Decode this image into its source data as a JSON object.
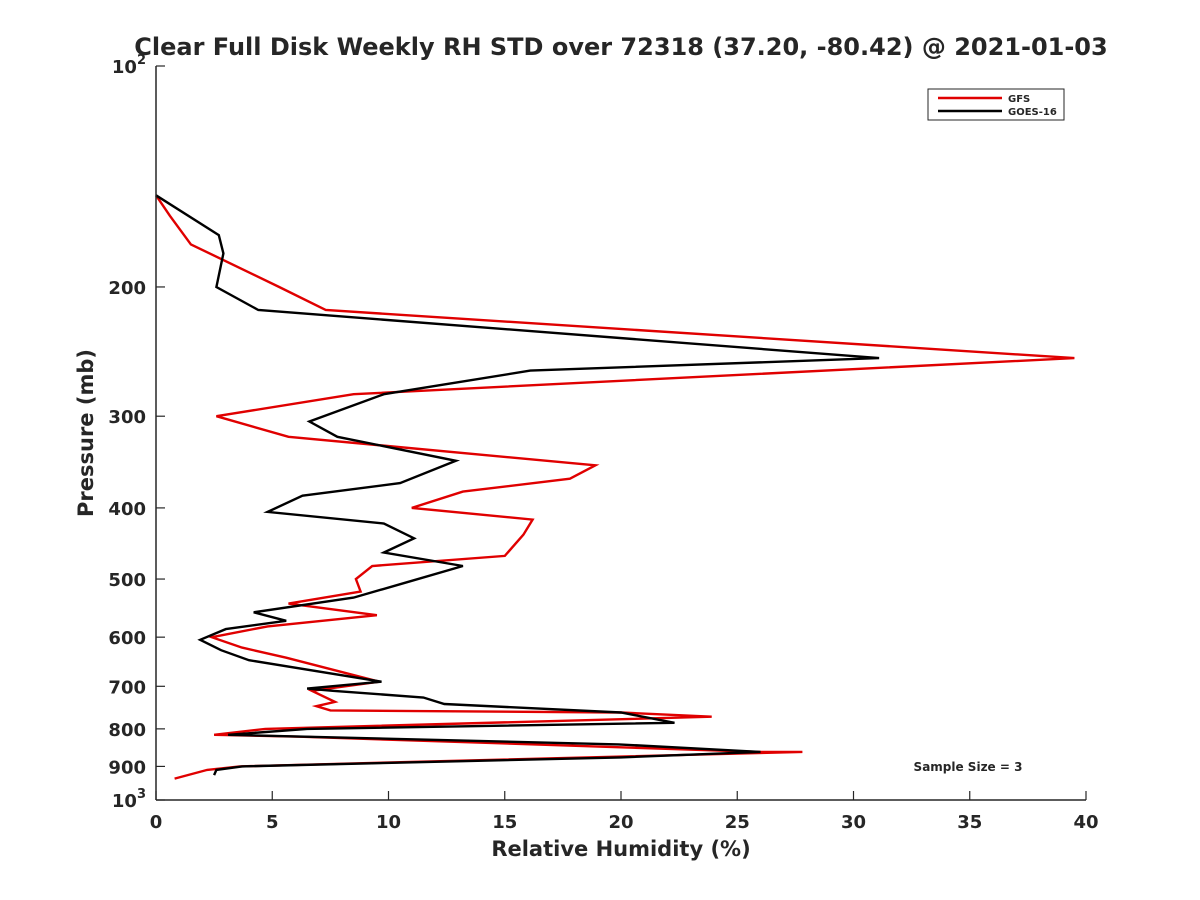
{
  "chart_data": {
    "type": "line",
    "title": "Clear Full Disk Weekly RH STD over 72318 (37.20, -80.42) @ 2021-01-03",
    "xlabel": "Relative Humidity (%)",
    "ylabel": "Pressure (mb)",
    "xlim": [
      0,
      40
    ],
    "ylim": [
      100,
      1000
    ],
    "y_scale": "log",
    "y_reversed": true,
    "grid": false,
    "legend_position": "top-right",
    "x_ticks": [
      "0",
      "5",
      "10",
      "15",
      "20",
      "25",
      "30",
      "35",
      "40"
    ],
    "y_ticks": [
      {
        "value": 100,
        "base": "10",
        "exp": "2"
      },
      {
        "value": 200,
        "label": "200"
      },
      {
        "value": 300,
        "label": "300"
      },
      {
        "value": 400,
        "label": "400"
      },
      {
        "value": 500,
        "label": "500"
      },
      {
        "value": 600,
        "label": "600"
      },
      {
        "value": 700,
        "label": "700"
      },
      {
        "value": 800,
        "label": "800"
      },
      {
        "value": 900,
        "label": "900"
      },
      {
        "value": 1000,
        "base": "10",
        "exp": "3"
      }
    ],
    "annotation": "Sample Size = 3",
    "series": [
      {
        "name": "GFS",
        "color": "#e00000",
        "points": [
          [
            0.0,
            150
          ],
          [
            0.6,
            160
          ],
          [
            1.5,
            175
          ],
          [
            5.3,
            200
          ],
          [
            7.3,
            215
          ],
          [
            39.5,
            250
          ],
          [
            8.5,
            280
          ],
          [
            2.6,
            300
          ],
          [
            5.7,
            320
          ],
          [
            18.9,
            350
          ],
          [
            17.8,
            365
          ],
          [
            13.2,
            380
          ],
          [
            11.0,
            400
          ],
          [
            16.2,
            415
          ],
          [
            15.8,
            435
          ],
          [
            15.0,
            465
          ],
          [
            9.3,
            480
          ],
          [
            8.6,
            500
          ],
          [
            8.8,
            520
          ],
          [
            5.7,
            540
          ],
          [
            9.5,
            560
          ],
          [
            4.8,
            580
          ],
          [
            2.4,
            600
          ],
          [
            3.7,
            620
          ],
          [
            5.6,
            640
          ],
          [
            9.6,
            690
          ],
          [
            6.7,
            710
          ],
          [
            7.7,
            735
          ],
          [
            6.9,
            745
          ],
          [
            7.5,
            755
          ],
          [
            20.0,
            760
          ],
          [
            23.9,
            770
          ],
          [
            4.7,
            800
          ],
          [
            2.5,
            815
          ],
          [
            6.2,
            820
          ],
          [
            26.0,
            860
          ],
          [
            27.8,
            860
          ],
          [
            3.6,
            900
          ],
          [
            2.2,
            910
          ],
          [
            0.8,
            935
          ]
        ]
      },
      {
        "name": "GOES-16",
        "color": "#000000",
        "points": [
          [
            0.0,
            150
          ],
          [
            2.7,
            170
          ],
          [
            2.9,
            180
          ],
          [
            2.6,
            200
          ],
          [
            4.4,
            215
          ],
          [
            31.1,
            250
          ],
          [
            16.1,
            260
          ],
          [
            9.8,
            280
          ],
          [
            6.6,
            305
          ],
          [
            7.8,
            320
          ],
          [
            12.9,
            345
          ],
          [
            10.5,
            370
          ],
          [
            6.3,
            385
          ],
          [
            4.8,
            405
          ],
          [
            9.8,
            420
          ],
          [
            11.1,
            440
          ],
          [
            9.8,
            460
          ],
          [
            13.2,
            480
          ],
          [
            10.8,
            505
          ],
          [
            8.5,
            530
          ],
          [
            4.2,
            555
          ],
          [
            5.6,
            570
          ],
          [
            3.0,
            585
          ],
          [
            1.9,
            605
          ],
          [
            2.8,
            625
          ],
          [
            4.0,
            645
          ],
          [
            9.7,
            690
          ],
          [
            6.5,
            705
          ],
          [
            7.6,
            710
          ],
          [
            11.5,
            725
          ],
          [
            12.4,
            740
          ],
          [
            20.0,
            760
          ],
          [
            22.3,
            785
          ],
          [
            6.5,
            800
          ],
          [
            3.1,
            815
          ],
          [
            19.9,
            840
          ],
          [
            26.0,
            860
          ],
          [
            20.0,
            875
          ],
          [
            3.7,
            900
          ],
          [
            2.6,
            910
          ],
          [
            2.5,
            925
          ]
        ]
      }
    ]
  }
}
